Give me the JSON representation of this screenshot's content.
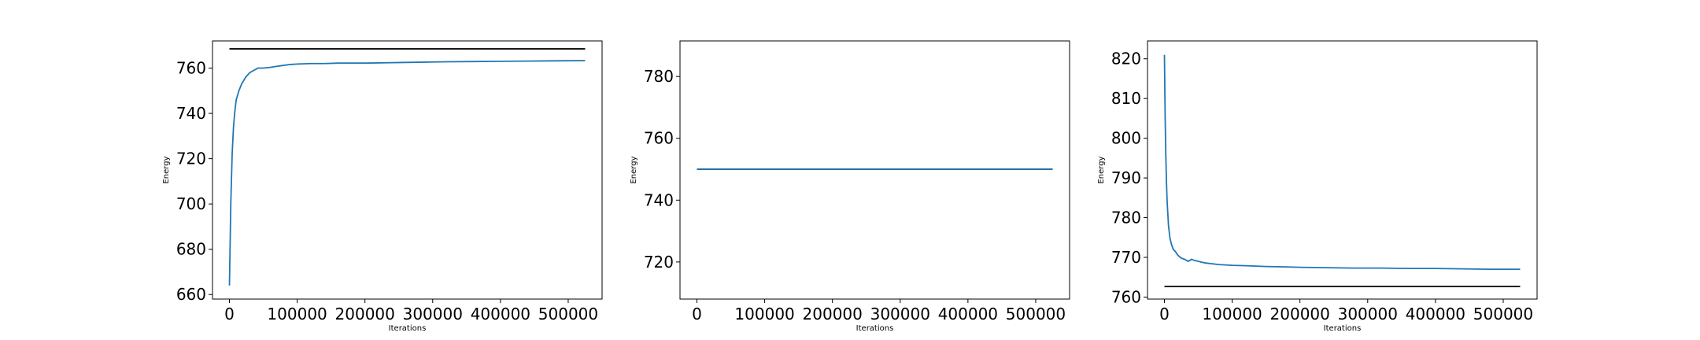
{
  "chart_data": [
    {
      "type": "line",
      "xlabel": "Iterations",
      "ylabel": "Energy",
      "xlim": [
        -25000,
        550000
      ],
      "ylim": [
        658,
        772
      ],
      "x_ticks": [
        0,
        100000,
        200000,
        300000,
        400000,
        500000
      ],
      "y_ticks": [
        660,
        680,
        700,
        720,
        740,
        760
      ],
      "series": [
        {
          "color": "#000000",
          "style": "reference",
          "x": [
            0,
            525000
          ],
          "y": [
            768.5,
            768.5
          ]
        },
        {
          "color": "#1f77b4",
          "style": "trace",
          "x": [
            0,
            2000,
            4000,
            6000,
            8000,
            10000,
            14000,
            18000,
            24000,
            30000,
            36000,
            42000,
            50000,
            60000,
            70000,
            80000,
            90000,
            100000,
            120000,
            140000,
            160000,
            180000,
            200000,
            240000,
            280000,
            320000,
            360000,
            400000,
            440000,
            480000,
            525000
          ],
          "y": [
            664,
            700,
            722,
            734,
            741,
            746,
            750,
            753,
            756,
            758,
            759,
            760,
            760,
            760.3,
            760.8,
            761.2,
            761.6,
            761.8,
            762,
            762,
            762.2,
            762.2,
            762.2,
            762.4,
            762.6,
            762.8,
            762.9,
            763,
            763.1,
            763.2,
            763.3
          ]
        }
      ]
    },
    {
      "type": "line",
      "xlabel": "Iterations",
      "ylabel": "Energy",
      "xlim": [
        -25000,
        550000
      ],
      "ylim": [
        708,
        791.5
      ],
      "x_ticks": [
        0,
        100000,
        200000,
        300000,
        400000,
        500000
      ],
      "y_ticks": [
        720,
        740,
        760,
        780
      ],
      "series": [
        {
          "color": "#000000",
          "style": "reference",
          "x": [
            0,
            525000
          ],
          "y": [
            750,
            750
          ]
        },
        {
          "color": "#1f77b4",
          "style": "trace",
          "x": [
            0,
            525000
          ],
          "y": [
            750,
            750
          ]
        }
      ]
    },
    {
      "type": "line",
      "xlabel": "Iterations",
      "ylabel": "Energy",
      "xlim": [
        -25000,
        550000
      ],
      "ylim": [
        759.5,
        824.5
      ],
      "x_ticks": [
        0,
        100000,
        200000,
        300000,
        400000,
        500000
      ],
      "y_ticks": [
        760,
        770,
        780,
        790,
        800,
        810,
        820
      ],
      "series": [
        {
          "color": "#000000",
          "style": "reference",
          "x": [
            0,
            525000
          ],
          "y": [
            762.7,
            762.7
          ]
        },
        {
          "color": "#1f77b4",
          "style": "trace",
          "x": [
            0,
            1000,
            2000,
            3000,
            4000,
            6000,
            8000,
            10000,
            13000,
            16000,
            20000,
            25000,
            30000,
            35000,
            40000,
            45000,
            50000,
            60000,
            70000,
            80000,
            100000,
            120000,
            150000,
            180000,
            200000,
            240000,
            280000,
            320000,
            360000,
            400000,
            440000,
            480000,
            525000
          ],
          "y": [
            821,
            806,
            796,
            789,
            784,
            778,
            775,
            773.5,
            772,
            771.5,
            770.5,
            769.8,
            769.5,
            769,
            769.5,
            769.2,
            769,
            768.6,
            768.4,
            768.2,
            768,
            767.9,
            767.7,
            767.6,
            767.5,
            767.4,
            767.3,
            767.3,
            767.2,
            767.2,
            767.1,
            767,
            767
          ]
        }
      ]
    }
  ]
}
